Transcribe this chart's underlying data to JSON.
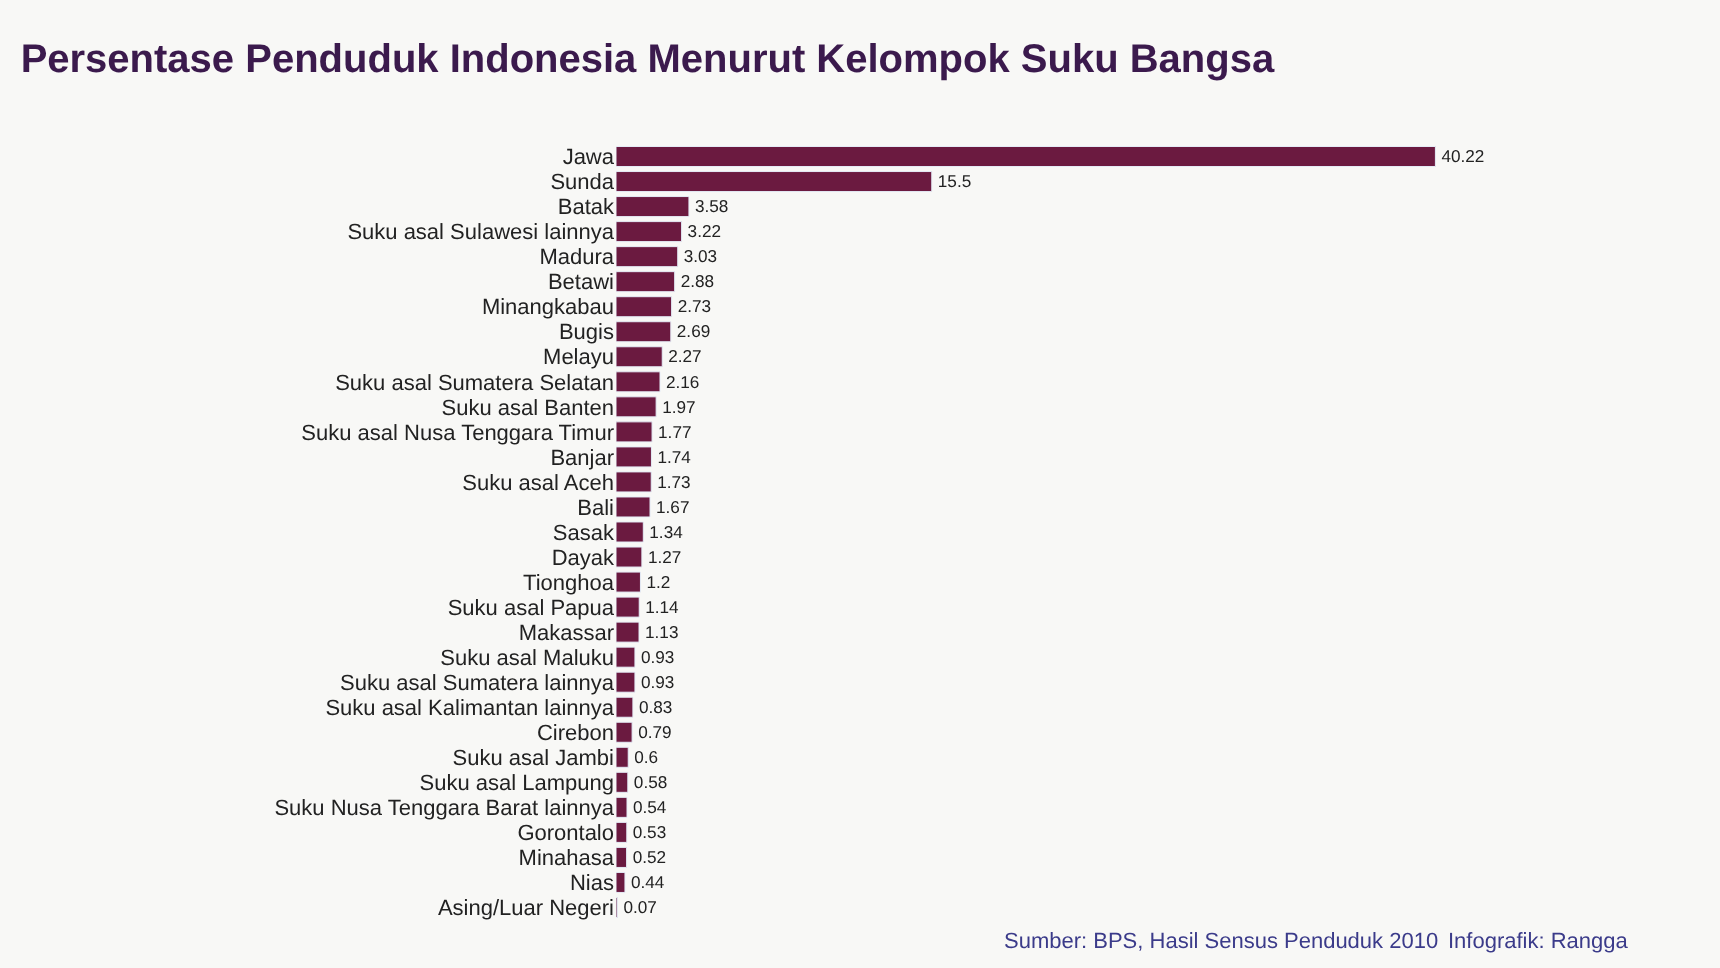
{
  "chart_data": {
    "type": "bar",
    "orientation": "horizontal",
    "title": "Persentase Penduduk Indonesia Menurut Kelompok Suku Bangsa",
    "categories": [
      "Jawa",
      "Sunda",
      "Batak",
      "Suku asal Sulawesi lainnya",
      "Madura",
      "Betawi",
      "Minangkabau",
      "Bugis",
      "Melayu",
      "Suku asal Sumatera Selatan",
      "Suku asal Banten",
      "Suku asal Nusa Tenggara Timur",
      "Banjar",
      "Suku asal Aceh",
      "Bali",
      "Sasak",
      "Dayak",
      "Tionghoa",
      "Suku asal Papua",
      "Makassar",
      "Suku asal Maluku",
      "Suku asal Sumatera lainnya",
      "Suku asal Kalimantan lainnya",
      "Cirebon",
      "Suku asal Jambi",
      "Suku asal Lampung",
      "Suku Nusa Tenggara Barat lainnya",
      "Gorontalo",
      "Minahasa",
      "Nias",
      "Asing/Luar Negeri"
    ],
    "values": [
      40.22,
      15.5,
      3.58,
      3.22,
      3.03,
      2.88,
      2.73,
      2.69,
      2.27,
      2.16,
      1.97,
      1.77,
      1.74,
      1.73,
      1.67,
      1.34,
      1.27,
      1.2,
      1.14,
      1.13,
      0.93,
      0.93,
      0.83,
      0.79,
      0.6,
      0.58,
      0.54,
      0.53,
      0.52,
      0.44,
      0.07
    ],
    "color": "#6b1a40",
    "data_labels": true,
    "legend": false,
    "annotations": [
      "Sumber: BPS, Hasil Sensus Penduduk 2010",
      "Infografik: Rangga"
    ]
  }
}
